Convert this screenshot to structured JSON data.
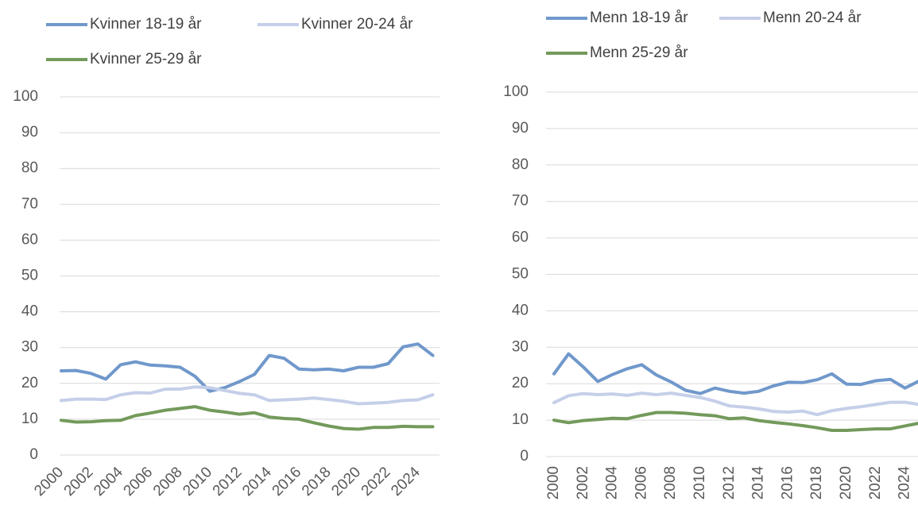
{
  "chart_data": [
    {
      "type": "line",
      "categories": [
        "2000",
        null,
        "2002",
        null,
        "2004",
        null,
        "2006",
        null,
        "2008",
        null,
        "2010",
        null,
        "2012",
        null,
        "2014",
        null,
        "2016",
        null,
        "2018",
        null,
        "2020",
        null,
        "2022",
        null,
        "2024",
        null
      ],
      "series": [
        {
          "name": "Kvinner 18-19 år",
          "color": "#7098cb",
          "values": [
            23.5,
            23.6,
            22.8,
            21.2,
            25.2,
            26,
            25.1,
            24.9,
            24.5,
            22,
            17.8,
            18.8,
            20.5,
            22.5,
            27.8,
            27,
            24,
            23.8,
            24,
            23.5,
            24.5,
            24.5,
            25.5,
            30.2,
            31,
            27.8
          ]
        },
        {
          "name": "Kvinner 20-24 år",
          "color": "#c5cfe9",
          "values": [
            15.2,
            15.6,
            15.6,
            15.5,
            16.8,
            17.4,
            17.3,
            18.4,
            18.4,
            19,
            18.8,
            18,
            17.2,
            16.8,
            15.2,
            15.4,
            15.6,
            15.9,
            15.5,
            15,
            14.3,
            14.5,
            14.7,
            15.2,
            15.4,
            16.8
          ]
        },
        {
          "name": "Kvinner 25-29 år",
          "color": "#739a5b",
          "values": [
            9.7,
            9.2,
            9.3,
            9.6,
            9.7,
            11,
            11.7,
            12.5,
            13,
            13.5,
            12.5,
            12,
            11.4,
            11.8,
            10.6,
            10.2,
            10,
            9,
            8.1,
            7.4,
            7.2,
            7.7,
            7.7,
            8,
            7.9,
            7.9
          ]
        }
      ],
      "ylim": [
        0,
        100
      ],
      "yticks": [
        0,
        10,
        20,
        30,
        40,
        50,
        60,
        70,
        80,
        90,
        100
      ],
      "grid": true,
      "legend": "top"
    },
    {
      "type": "line",
      "categories": [
        "2000",
        null,
        "2002",
        null,
        "2004",
        null,
        "2006",
        null,
        "2008",
        null,
        "2010",
        null,
        "2012",
        null,
        "2014",
        null,
        "2016",
        null,
        "2018",
        null,
        "2020",
        null,
        "2022",
        null,
        "2024",
        null
      ],
      "series": [
        {
          "name": "Menn 18-19 år",
          "color": "#7098cb",
          "values": [
            22.7,
            28.2,
            24.6,
            20.6,
            22.5,
            24.1,
            25.2,
            22.4,
            20.5,
            18.2,
            17.3,
            18.8,
            17.9,
            17.4,
            17.9,
            19.4,
            20.4,
            20.3,
            21.1,
            22.7,
            19.9,
            19.8,
            20.8,
            21.2,
            18.8,
            20.8
          ]
        },
        {
          "name": "Menn 20-24 år",
          "color": "#c5cfe9",
          "values": [
            14.8,
            16.7,
            17.3,
            17,
            17.2,
            16.8,
            17.4,
            17,
            17.4,
            16.8,
            16.2,
            15.2,
            13.9,
            13.6,
            13.1,
            12.4,
            12.2,
            12.5,
            11.5,
            12.6,
            13.2,
            13.7,
            14.3,
            14.9,
            14.9,
            14.3
          ]
        },
        {
          "name": "Menn 25-29 år",
          "color": "#739a5b",
          "values": [
            10,
            9.3,
            9.9,
            10.2,
            10.5,
            10.4,
            11.3,
            12.1,
            12.1,
            11.9,
            11.5,
            11.2,
            10.4,
            10.6,
            9.9,
            9.4,
            9,
            8.5,
            7.9,
            7.2,
            7.2,
            7.4,
            7.6,
            7.6,
            8.4,
            9.2
          ]
        }
      ],
      "ylim": [
        0,
        100
      ],
      "yticks": [
        0,
        10,
        20,
        30,
        40,
        50,
        60,
        70,
        80,
        90,
        100
      ],
      "grid": true,
      "legend": "top"
    }
  ]
}
